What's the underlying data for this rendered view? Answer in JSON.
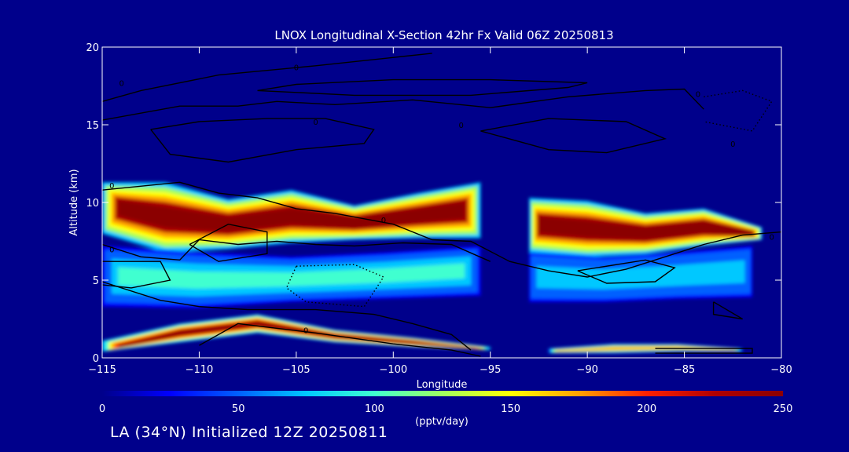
{
  "chart_data": {
    "type": "heatmap",
    "title": "LNOX Longitudinal X-Section 42hr  Fx Valid 06Z 20250813",
    "xlabel": "Longitude",
    "ylabel": "Altitude (km)",
    "xlim": [
      -115,
      -80
    ],
    "ylim": [
      0,
      20
    ],
    "x_ticks": [
      -115,
      -110,
      -105,
      -100,
      -95,
      -90,
      -85,
      -80
    ],
    "x_tick_labels": [
      "−115",
      "−110",
      "−105",
      "−100",
      "−95",
      "−90",
      "−85",
      "−80"
    ],
    "y_ticks": [
      0,
      5,
      10,
      15,
      20
    ],
    "y_tick_labels": [
      "0",
      "5",
      "10",
      "15",
      "20"
    ],
    "colorbar": {
      "ticks": [
        0,
        50,
        100,
        150,
        200,
        250
      ],
      "tick_labels": [
        "0",
        "50",
        "100",
        "150",
        "200",
        "250"
      ],
      "units": "(pptv/day)",
      "colors": [
        "#00008b",
        "#0000ff",
        "#0060ff",
        "#00c8ff",
        "#40ffd0",
        "#a0ff60",
        "#ffff00",
        "#ffa000",
        "#ff2000",
        "#b00000",
        "#8b0000"
      ]
    },
    "bands": [
      {
        "name": "upper-lnox-maximum-west",
        "lon": [
          -115,
          -95.5
        ],
        "z_bottom": [
          8,
          6.8,
          7,
          7.4,
          7.6,
          7.7,
          7.7
        ],
        "z_top": [
          11.3,
          11.3,
          10.2,
          10.8,
          9.8,
          10.6,
          11.3
        ],
        "peak": 250
      },
      {
        "name": "upper-lnox-maximum-east",
        "lon": [
          -93,
          -81
        ],
        "z_bottom": [
          6.8,
          6.5,
          6.7,
          7.2,
          7.6
        ],
        "z_top": [
          10.3,
          10.1,
          9.3,
          9.6,
          8.4
        ],
        "peak": 250
      },
      {
        "name": "low-level-lnox-west",
        "lon": [
          -115,
          -95
        ],
        "z_bottom": [
          0.4,
          1.0,
          1.6,
          1.0,
          0.7,
          0.5
        ],
        "z_top": [
          1.1,
          2.2,
          2.8,
          1.8,
          1.3,
          0.7
        ],
        "peak": 240
      },
      {
        "name": "low-level-lnox-east",
        "lon": [
          -92,
          -82
        ],
        "z_bottom": [
          0.3,
          0.3,
          0.4,
          0.4
        ],
        "z_top": [
          0.6,
          0.9,
          0.9,
          0.6
        ],
        "peak": 180
      },
      {
        "name": "mid-level-moderate-west",
        "lon": [
          -115,
          -95.5
        ],
        "z_bottom": [
          3.3,
          3.2,
          3.6,
          3.8,
          4.0
        ],
        "z_top": [
          7.2,
          6.8,
          6.5,
          6.8,
          7.2
        ],
        "peak": 90
      },
      {
        "name": "mid-level-moderate-east",
        "lon": [
          -93,
          -81.5
        ],
        "z_bottom": [
          3.6,
          3.6,
          3.8,
          3.9
        ],
        "z_top": [
          6.8,
          6.5,
          6.8,
          7.2
        ],
        "peak": 85
      }
    ],
    "contours": [
      {
        "level": "0",
        "style": "solid",
        "points": [
          [
            -115,
            16.5
          ],
          [
            -113,
            17.2
          ],
          [
            -109,
            18.2
          ],
          [
            -104,
            18.8
          ],
          [
            -98,
            19.6
          ]
        ]
      },
      {
        "level": "0",
        "style": "solid",
        "points": [
          [
            -115,
            15.3
          ],
          [
            -111,
            16.2
          ],
          [
            -108,
            16.2
          ],
          [
            -106,
            16.5
          ],
          [
            -103,
            16.3
          ],
          [
            -99,
            16.6
          ],
          [
            -95,
            16.1
          ],
          [
            -91,
            16.8
          ],
          [
            -87,
            17.2
          ],
          [
            -85,
            17.3
          ],
          [
            -84,
            16
          ]
        ]
      },
      {
        "level": "0",
        "style": "solid",
        "points": [
          [
            -107,
            17.2
          ],
          [
            -102,
            16.9
          ],
          [
            -96,
            16.9
          ],
          [
            -91,
            17.4
          ],
          [
            -90,
            17.7
          ],
          [
            -95,
            17.9
          ],
          [
            -100,
            17.9
          ],
          [
            -105,
            17.6
          ],
          [
            -107,
            17.2
          ]
        ]
      },
      {
        "level": "0",
        "style": "solid",
        "points": [
          [
            -112.5,
            14.7
          ],
          [
            -110,
            15.2
          ],
          [
            -106.5,
            15.4
          ],
          [
            -103.5,
            15.4
          ],
          [
            -101,
            14.7
          ],
          [
            -101.5,
            13.8
          ],
          [
            -105,
            13.4
          ],
          [
            -108.5,
            12.6
          ],
          [
            -111.5,
            13.1
          ],
          [
            -112.5,
            14.7
          ]
        ]
      },
      {
        "level": "0",
        "style": "solid",
        "points": [
          [
            -95.5,
            14.6
          ],
          [
            -92,
            15.4
          ],
          [
            -88,
            15.2
          ],
          [
            -86,
            14.1
          ],
          [
            -89,
            13.2
          ],
          [
            -92,
            13.4
          ],
          [
            -95.5,
            14.6
          ]
        ]
      },
      {
        "level": "0",
        "style": "solid",
        "points": [
          [
            -115,
            10.8
          ],
          [
            -111,
            11.3
          ],
          [
            -109,
            10.6
          ],
          [
            -107,
            10.3
          ],
          [
            -105,
            9.6
          ],
          [
            -103,
            9.3
          ],
          [
            -100,
            8.6
          ],
          [
            -98,
            7.6
          ],
          [
            -96,
            7.5
          ],
          [
            -94,
            6.2
          ],
          [
            -92,
            5.6
          ],
          [
            -90,
            5.2
          ],
          [
            -88,
            5.7
          ],
          [
            -86,
            6.5
          ],
          [
            -84,
            7.3
          ],
          [
            -82,
            7.9
          ],
          [
            -80,
            8.1
          ]
        ]
      },
      {
        "level": "0",
        "style": "solid",
        "points": [
          [
            -115,
            7.3
          ],
          [
            -113,
            6.5
          ],
          [
            -111,
            6.3
          ],
          [
            -110,
            7.6
          ],
          [
            -108,
            7.3
          ],
          [
            -106,
            7.5
          ],
          [
            -104,
            7.3
          ],
          [
            -102,
            7.2
          ],
          [
            -99.5,
            7.4
          ],
          [
            -97,
            7.3
          ],
          [
            -95,
            6.2
          ]
        ]
      },
      {
        "level": "0",
        "style": "solid",
        "points": [
          [
            -110.5,
            7.3
          ],
          [
            -108.5,
            8.6
          ],
          [
            -106.5,
            8.1
          ],
          [
            -106.5,
            6.7
          ],
          [
            -109,
            6.2
          ],
          [
            -110.5,
            7.3
          ]
        ]
      },
      {
        "level": "0",
        "style": "solid",
        "points": [
          [
            -115,
            6.2
          ],
          [
            -112,
            6.2
          ],
          [
            -111.5,
            5.0
          ],
          [
            -113.5,
            4.5
          ],
          [
            -115,
            4.7
          ]
        ]
      },
      {
        "level": "0",
        "style": "solid",
        "points": [
          [
            -90.5,
            5.6
          ],
          [
            -87,
            6.3
          ],
          [
            -85.5,
            5.8
          ],
          [
            -86.5,
            4.9
          ],
          [
            -89,
            4.8
          ],
          [
            -90.5,
            5.6
          ]
        ]
      },
      {
        "level": "0",
        "style": "solid",
        "points": [
          [
            -115,
            4.9
          ],
          [
            -112,
            3.7
          ],
          [
            -110,
            3.3
          ],
          [
            -107.5,
            3.1
          ],
          [
            -104,
            3.1
          ],
          [
            -101,
            2.8
          ],
          [
            -99,
            2.2
          ],
          [
            -97,
            1.5
          ],
          [
            -96,
            0.5
          ]
        ]
      },
      {
        "level": "0",
        "style": "solid",
        "points": [
          [
            -110,
            0.8
          ],
          [
            -108,
            2.2
          ],
          [
            -104,
            1.6
          ],
          [
            -100,
            0.9
          ],
          [
            -97,
            0.5
          ],
          [
            -95.5,
            0.1
          ]
        ]
      },
      {
        "level": "0",
        "style": "solid",
        "points": [
          [
            -83.5,
            3.6
          ],
          [
            -82,
            2.5
          ],
          [
            -83.5,
            2.8
          ],
          [
            -83.5,
            3.6
          ]
        ]
      },
      {
        "level": "0",
        "style": "solid",
        "points": [
          [
            -86.5,
            0.3
          ],
          [
            -81.5,
            0.3
          ],
          [
            -81.5,
            0.6
          ],
          [
            -86.5,
            0.6
          ]
        ]
      },
      {
        "level": "0",
        "style": "dotted",
        "points": [
          [
            -105,
            5.9
          ],
          [
            -102,
            6.0
          ],
          [
            -100.5,
            5.2
          ],
          [
            -101.5,
            3.3
          ],
          [
            -104.5,
            3.6
          ],
          [
            -105.5,
            4.5
          ],
          [
            -105,
            5.9
          ]
        ]
      },
      {
        "level": "0",
        "style": "dotted",
        "points": [
          [
            -84,
            16.8
          ],
          [
            -82,
            17.2
          ],
          [
            -80.5,
            16.5
          ],
          [
            -81.5,
            14.6
          ],
          [
            -84,
            15.2
          ]
        ]
      }
    ],
    "contour_labels": [
      {
        "text": "0",
        "x": -114,
        "y": 17.7
      },
      {
        "text": "0",
        "x": -105,
        "y": 18.7
      },
      {
        "text": "0",
        "x": -104,
        "y": 15.2
      },
      {
        "text": "0",
        "x": -96.5,
        "y": 15.0
      },
      {
        "text": "0",
        "x": -84.3,
        "y": 17.0
      },
      {
        "text": "0",
        "x": -82.5,
        "y": 13.8
      },
      {
        "text": "0",
        "x": -114.5,
        "y": 11.1
      },
      {
        "text": "0",
        "x": -100.5,
        "y": 8.9
      },
      {
        "text": "0",
        "x": -114.5,
        "y": 7.0
      },
      {
        "text": "0",
        "x": -104.5,
        "y": 1.8
      },
      {
        "text": "0",
        "x": -80.5,
        "y": 7.8
      }
    ]
  },
  "footer": {
    "label": "LA (34°N) Initialized 12Z 20250811"
  }
}
